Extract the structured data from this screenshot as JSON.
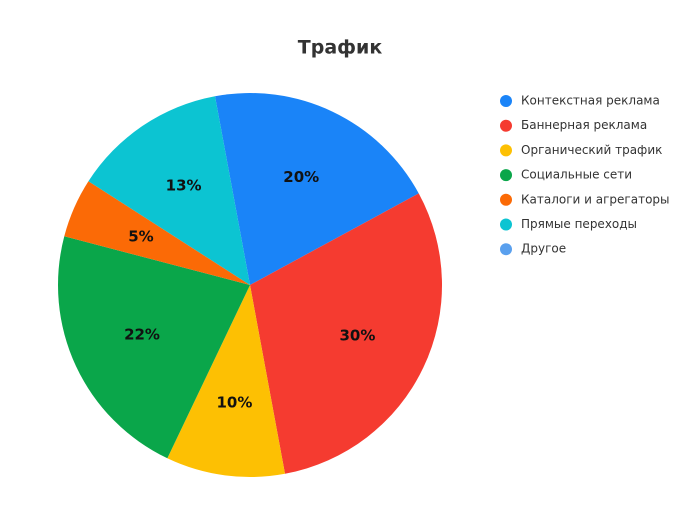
{
  "chart_data": {
    "type": "pie",
    "title": "Трафик",
    "categories": [
      "Контекстная реклама",
      "Баннерная реклама",
      "Органический трафик",
      "Социальные сети",
      "Каталоги и агрегаторы",
      "Прямые переходы",
      "Другое"
    ],
    "values": [
      20,
      30,
      10,
      22,
      5,
      13,
      0
    ],
    "value_labels": [
      "20%",
      "30%",
      "10%",
      "22%",
      "5%",
      "13%",
      null
    ],
    "colors": [
      "#1a84f8",
      "#f53b30",
      "#fdc003",
      "#0aa64a",
      "#fb6a06",
      "#0cc4d2",
      "#5aa0ee"
    ]
  }
}
